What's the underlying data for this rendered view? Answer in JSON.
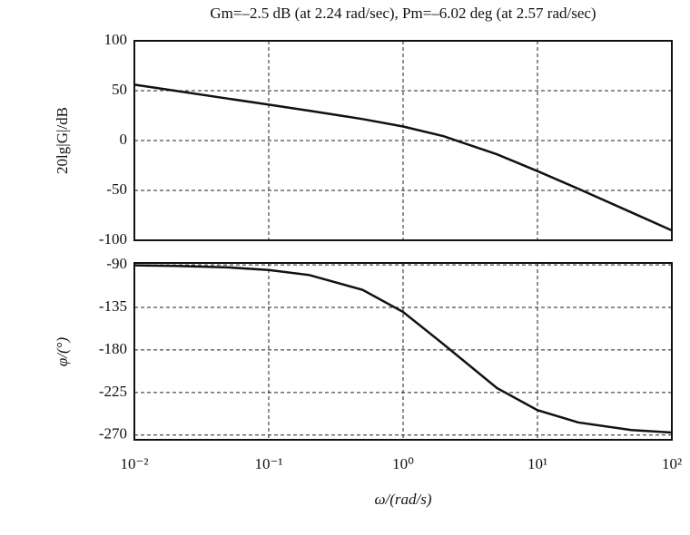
{
  "chart_data": [
    {
      "type": "line",
      "title": "Gm=–2.5 dB (at 2.24 rad/sec), Pm=–6.02 deg (at 2.57 rad/sec)",
      "ylabel": "20lg|G|/dB",
      "log_x": true,
      "grid": true,
      "show_xticklabels": false,
      "xlim": [
        0.01,
        100
      ],
      "xticks": [
        0.01,
        0.1,
        1,
        10,
        100
      ],
      "ylim": [
        -100,
        100
      ],
      "yticks": [
        -100,
        -50,
        0,
        50,
        100
      ],
      "x": [
        0.01,
        0.02,
        0.05,
        0.1,
        0.2,
        0.5,
        1,
        2,
        5,
        10,
        20,
        50,
        100
      ],
      "series": [
        {
          "color": "#111111",
          "values": [
            56.0,
            50.0,
            42.0,
            36.0,
            29.9,
            21.5,
            14.1,
            4.4,
            -13.8,
            -30.6,
            -48.2,
            -72.0,
            -90.1
          ]
        }
      ]
    },
    {
      "type": "line",
      "ylabel": "φ/(°)",
      "xlabel": "ω/(rad/s)",
      "log_x": true,
      "grid": true,
      "show_xticklabels": true,
      "xlim": [
        0.01,
        100
      ],
      "xticks": [
        {
          "value": 0.01,
          "label": "10⁻²"
        },
        {
          "value": 0.1,
          "label": "10⁻¹"
        },
        {
          "value": 1,
          "label": "10⁰"
        },
        {
          "value": 10,
          "label": "10¹"
        },
        {
          "value": 100,
          "label": "10²"
        }
      ],
      "ylim": [
        -275,
        -88
      ],
      "yticks": [
        -270,
        -225,
        -180,
        -135,
        -90
      ],
      "x": [
        0.01,
        0.02,
        0.05,
        0.1,
        0.2,
        0.5,
        1,
        2,
        5,
        10,
        20,
        50,
        100
      ],
      "series": [
        {
          "color": "#111111",
          "values": [
            -90.5,
            -91.1,
            -92.7,
            -95.4,
            -100.8,
            -116.5,
            -139.8,
            -174.0,
            -220.3,
            -243.6,
            -256.6,
            -264.6,
            -267.3
          ]
        }
      ]
    }
  ]
}
